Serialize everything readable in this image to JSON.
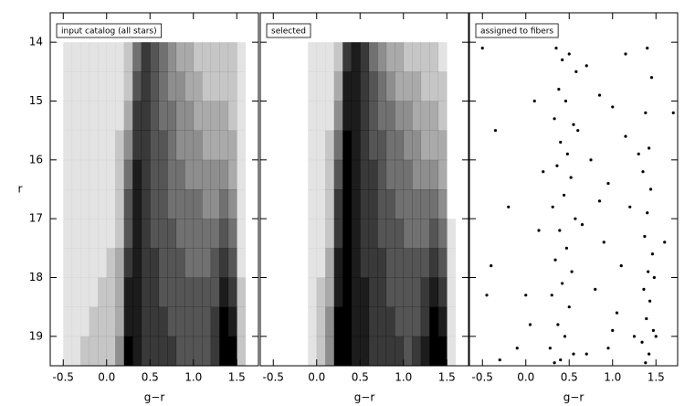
{
  "chart_data": [
    {
      "type": "heatmap",
      "title": "input catalog (all stars)",
      "xlabel": "g−r",
      "ylabel": "r",
      "show_yticklabels": true,
      "xlim": [
        -0.65,
        1.75
      ],
      "ylim": [
        19.5,
        13.5
      ],
      "xticks": [
        -0.5,
        {
          "value": 0,
          "label": "0.0"
        },
        0.5,
        {
          "value": 1,
          "label": "1.0"
        },
        1.5
      ],
      "yticks": [
        14,
        15,
        16,
        17,
        18,
        19
      ],
      "color": "#000000",
      "xbins": [
        -0.6,
        -0.5,
        -0.4,
        -0.3,
        -0.2,
        -0.1,
        0,
        0.1,
        0.2,
        0.3,
        0.4,
        0.5,
        0.6,
        0.7,
        0.8,
        0.9,
        1,
        1.1,
        1.2,
        1.3,
        1.4,
        1.5,
        1.6,
        1.7
      ],
      "ybins": [
        14,
        14.5,
        15,
        15.5,
        16,
        16.5,
        17,
        17.5,
        18,
        18.5,
        19,
        19.5
      ],
      "z": [
        [
          0,
          1,
          1,
          1,
          1,
          1,
          1,
          1,
          2,
          5,
          7,
          6,
          5,
          4,
          3,
          3,
          2,
          2,
          2,
          2,
          2,
          1,
          0
        ],
        [
          0,
          1,
          1,
          1,
          1,
          1,
          1,
          1,
          2,
          6,
          7,
          6,
          5,
          4,
          4,
          3,
          3,
          2,
          2,
          2,
          2,
          1,
          0
        ],
        [
          0,
          1,
          1,
          1,
          1,
          1,
          1,
          1,
          3,
          7,
          7,
          6,
          5,
          5,
          4,
          4,
          3,
          3,
          3,
          3,
          2,
          1,
          0
        ],
        [
          0,
          1,
          1,
          1,
          1,
          1,
          1,
          2,
          4,
          7,
          7,
          6,
          6,
          5,
          4,
          4,
          4,
          3,
          3,
          3,
          3,
          1,
          0
        ],
        [
          0,
          1,
          1,
          1,
          1,
          1,
          1,
          2,
          5,
          8,
          7,
          6,
          6,
          5,
          5,
          4,
          4,
          4,
          4,
          4,
          3,
          1,
          0
        ],
        [
          0,
          1,
          1,
          1,
          1,
          1,
          1,
          2,
          6,
          8,
          7,
          6,
          6,
          5,
          5,
          5,
          5,
          4,
          4,
          5,
          4,
          1,
          0
        ],
        [
          0,
          1,
          1,
          1,
          1,
          1,
          1,
          2,
          6,
          8,
          7,
          6,
          6,
          6,
          5,
          5,
          5,
          5,
          5,
          6,
          5,
          1,
          0
        ],
        [
          0,
          1,
          1,
          1,
          1,
          1,
          2,
          3,
          7,
          8,
          7,
          7,
          6,
          6,
          6,
          5,
          5,
          5,
          6,
          7,
          6,
          1,
          0
        ],
        [
          0,
          1,
          1,
          1,
          1,
          2,
          2,
          3,
          8,
          8,
          7,
          7,
          6,
          6,
          6,
          6,
          6,
          6,
          6,
          8,
          7,
          2,
          0
        ],
        [
          0,
          1,
          1,
          1,
          2,
          2,
          2,
          3,
          8,
          8,
          7,
          7,
          7,
          6,
          6,
          6,
          6,
          6,
          7,
          9,
          8,
          2,
          0
        ],
        [
          0,
          1,
          1,
          2,
          2,
          2,
          2,
          4,
          9,
          8,
          7,
          7,
          7,
          7,
          6,
          6,
          6,
          6,
          7,
          9,
          9,
          2,
          0
        ]
      ]
    },
    {
      "type": "heatmap",
      "title": "selected",
      "xlabel": "g−r",
      "show_yticklabels": false,
      "xlim": [
        -0.65,
        1.75
      ],
      "ylim": [
        19.5,
        13.5
      ],
      "xticks": [
        -0.5,
        {
          "value": 0,
          "label": "0.0"
        },
        0.5,
        {
          "value": 1,
          "label": "1.0"
        },
        1.5
      ],
      "yticks": [
        14,
        15,
        16,
        17,
        18,
        19
      ],
      "color": "#000000",
      "xbins": [
        -0.6,
        -0.5,
        -0.4,
        -0.3,
        -0.2,
        -0.1,
        0,
        0.1,
        0.2,
        0.3,
        0.4,
        0.5,
        0.6,
        0.7,
        0.8,
        0.9,
        1,
        1.1,
        1.2,
        1.3,
        1.4,
        1.5,
        1.6,
        1.7
      ],
      "ybins": [
        14,
        14.5,
        15,
        15.5,
        16,
        16.5,
        17,
        17.5,
        18,
        18.5,
        19,
        19.5
      ],
      "z": [
        [
          0,
          0,
          0,
          0,
          0,
          1,
          1,
          1,
          2,
          7,
          8,
          7,
          5,
          4,
          3,
          3,
          2,
          2,
          2,
          2,
          1,
          0,
          0
        ],
        [
          0,
          0,
          0,
          0,
          0,
          1,
          1,
          1,
          3,
          8,
          8,
          7,
          6,
          5,
          4,
          3,
          3,
          3,
          2,
          2,
          2,
          0,
          0
        ],
        [
          0,
          0,
          0,
          0,
          0,
          1,
          1,
          1,
          4,
          8,
          8,
          7,
          6,
          5,
          5,
          4,
          4,
          3,
          3,
          3,
          2,
          0,
          0
        ],
        [
          0,
          0,
          0,
          0,
          0,
          1,
          1,
          2,
          5,
          9,
          8,
          7,
          6,
          6,
          5,
          5,
          4,
          4,
          3,
          3,
          3,
          0,
          0
        ],
        [
          0,
          0,
          0,
          0,
          0,
          1,
          1,
          2,
          6,
          9,
          8,
          7,
          7,
          6,
          5,
          5,
          5,
          4,
          4,
          4,
          3,
          0,
          0
        ],
        [
          0,
          0,
          0,
          0,
          0,
          1,
          1,
          2,
          7,
          9,
          8,
          7,
          7,
          6,
          6,
          5,
          5,
          5,
          5,
          5,
          4,
          0,
          0
        ],
        [
          0,
          0,
          0,
          0,
          0,
          1,
          1,
          2,
          7,
          9,
          8,
          7,
          7,
          6,
          6,
          6,
          5,
          5,
          5,
          6,
          5,
          1,
          0
        ],
        [
          0,
          0,
          0,
          0,
          0,
          1,
          1,
          3,
          8,
          9,
          8,
          7,
          7,
          7,
          6,
          6,
          6,
          6,
          6,
          7,
          6,
          1,
          0
        ],
        [
          0,
          0,
          0,
          0,
          0,
          1,
          2,
          3,
          8,
          9,
          8,
          8,
          7,
          7,
          6,
          6,
          6,
          6,
          7,
          8,
          7,
          1,
          0
        ],
        [
          0,
          0,
          0,
          0,
          0,
          1,
          2,
          4,
          9,
          9,
          8,
          8,
          7,
          7,
          7,
          6,
          6,
          6,
          7,
          9,
          8,
          1,
          0
        ],
        [
          0,
          0,
          0,
          0,
          0,
          1,
          2,
          4,
          9,
          9,
          8,
          8,
          7,
          7,
          7,
          7,
          6,
          7,
          8,
          9,
          9,
          1,
          0
        ]
      ]
    },
    {
      "type": "scatter",
      "title": "assigned to fibers",
      "xlabel": "g−r",
      "show_yticklabels": false,
      "xlim": [
        -0.65,
        1.75
      ],
      "ylim": [
        19.5,
        13.5
      ],
      "xticks": [
        -0.5,
        {
          "value": 0,
          "label": "0.0"
        },
        0.5,
        {
          "value": 1,
          "label": "1.0"
        },
        1.5
      ],
      "yticks": [
        14,
        15,
        16,
        17,
        18,
        19
      ],
      "color": "#000000",
      "x": [
        0.35,
        0.42,
        0.5,
        0.58,
        0.38,
        0.46,
        0.33,
        0.55,
        0.4,
        0.48,
        0.36,
        0.52,
        0.44,
        0.31,
        0.57,
        0.39,
        0.47,
        0.34,
        0.53,
        0.42,
        0.3,
        0.5,
        0.37,
        0.45,
        0.28,
        0.55,
        0.33,
        0.4,
        1.4,
        1.45,
        1.38,
        1.42,
        1.35,
        1.44,
        1.4,
        1.37,
        1.46,
        1.41,
        1.36,
        1.43,
        1.39,
        1.47,
        1.34,
        1.42,
        1.38,
        1.5,
        1.48,
        0.7,
        0.85,
        1.0,
        1.15,
        0.75,
        0.95,
        1.2,
        0.65,
        0.9,
        1.1,
        0.8,
        1.05,
        1.25,
        0.7,
        0.95,
        1.15,
        0.6,
        1.3,
        0.85,
        1.0,
        -0.5,
        -0.35,
        -0.2,
        -0.4,
        0.0,
        -0.1,
        0.1,
        0.15,
        -0.3,
        0.2,
        0.05,
        -0.45,
        1.7,
        1.6
      ],
      "y": [
        14.1,
        14.3,
        14.2,
        14.5,
        14.8,
        15.0,
        15.3,
        15.4,
        15.7,
        15.9,
        16.1,
        16.3,
        16.6,
        16.8,
        17.0,
        17.2,
        17.5,
        17.7,
        17.9,
        18.1,
        18.3,
        18.5,
        18.8,
        19.0,
        19.2,
        19.3,
        19.45,
        19.4,
        14.1,
        14.6,
        15.2,
        15.8,
        16.2,
        16.5,
        16.9,
        17.3,
        17.6,
        17.9,
        18.2,
        18.4,
        18.7,
        18.9,
        19.1,
        19.3,
        19.45,
        19.0,
        18.0,
        14.4,
        14.9,
        15.1,
        15.6,
        16.0,
        16.4,
        16.8,
        17.1,
        17.4,
        17.8,
        18.2,
        18.6,
        19.0,
        19.3,
        19.2,
        14.2,
        15.5,
        15.9,
        16.7,
        18.9,
        14.1,
        15.5,
        16.8,
        17.8,
        18.3,
        19.2,
        15.0,
        17.2,
        19.4,
        16.2,
        18.8,
        18.3,
        15.2,
        17.4
      ]
    }
  ]
}
